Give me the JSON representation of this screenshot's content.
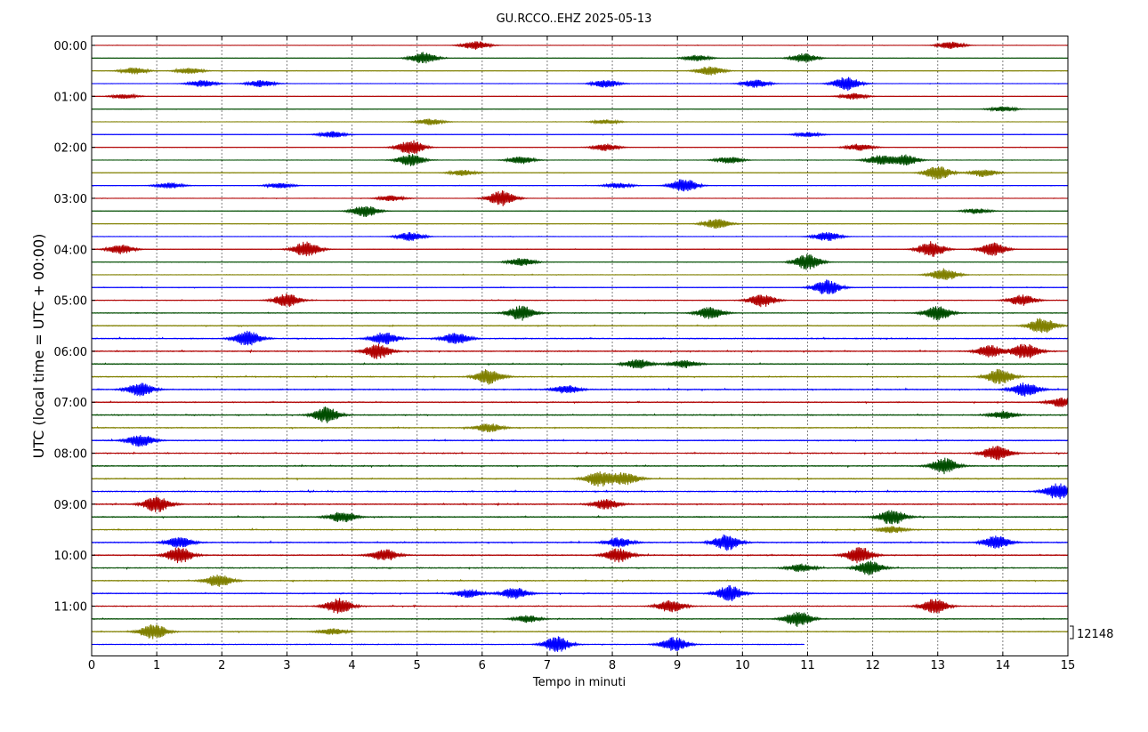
{
  "chart_data": {
    "type": "line",
    "title": "GU.RCCO..EHZ 2025-05-13",
    "xlabel": "Tempo in minuti",
    "ylabel": "UTC (local time = UTC + 00:00)",
    "xlim": [
      0,
      15
    ],
    "x_ticks": [
      "0",
      "1",
      "2",
      "3",
      "4",
      "5",
      "6",
      "7",
      "8",
      "9",
      "10",
      "11",
      "12",
      "13",
      "14",
      "15"
    ],
    "y_ticks": [
      "00:00",
      "01:00",
      "02:00",
      "03:00",
      "04:00",
      "05:00",
      "06:00",
      "07:00",
      "08:00",
      "09:00",
      "10:00",
      "11:00"
    ],
    "trace_interval_minutes": 15,
    "trace_count": 48,
    "last_trace_end_minute": 10.95,
    "scale_label": "12148",
    "colors": [
      "#b00000",
      "#004d00",
      "#808000",
      "#0000ff"
    ],
    "grid": "vertical-dotted",
    "noise_level": [
      0.12,
      0.12,
      0.12,
      0.14,
      0.12,
      0.1,
      0.12,
      0.14,
      0.14,
      0.14,
      0.14,
      0.14,
      0.14,
      0.14,
      0.14,
      0.16,
      0.16,
      0.16,
      0.18,
      0.2,
      0.22,
      0.26,
      0.3,
      0.35,
      0.35,
      0.35,
      0.35,
      0.38,
      0.35,
      0.35,
      0.35,
      0.35,
      0.35,
      0.35,
      0.35,
      0.38,
      0.38,
      0.38,
      0.35,
      0.38,
      0.38,
      0.35,
      0.32,
      0.3,
      0.3,
      0.3,
      0.3,
      0.28
    ],
    "events": [
      [
        [
          5.9,
          0.55
        ],
        [
          13.2,
          0.45
        ]
      ],
      [
        [
          5.1,
          0.75
        ],
        [
          9.3,
          0.4
        ],
        [
          10.95,
          0.6
        ]
      ],
      [
        [
          0.65,
          0.45
        ],
        [
          1.5,
          0.4
        ],
        [
          9.5,
          0.6
        ]
      ],
      [
        [
          1.7,
          0.45
        ],
        [
          2.6,
          0.45
        ],
        [
          7.9,
          0.5
        ],
        [
          10.2,
          0.55
        ],
        [
          11.6,
          0.9
        ]
      ],
      [
        [
          0.5,
          0.3
        ],
        [
          11.7,
          0.4
        ]
      ],
      [
        [
          14.0,
          0.35
        ]
      ],
      [
        [
          5.2,
          0.4
        ],
        [
          7.9,
          0.3
        ]
      ],
      [
        [
          3.7,
          0.4
        ],
        [
          11.0,
          0.3
        ]
      ],
      [
        [
          4.9,
          0.95
        ],
        [
          7.9,
          0.45
        ],
        [
          11.8,
          0.45
        ]
      ],
      [
        [
          4.9,
          0.75
        ],
        [
          6.6,
          0.5
        ],
        [
          9.8,
          0.45
        ],
        [
          12.1,
          0.6
        ],
        [
          12.5,
          0.7
        ]
      ],
      [
        [
          5.7,
          0.4
        ],
        [
          13.0,
          0.9
        ],
        [
          13.7,
          0.5
        ]
      ],
      [
        [
          1.2,
          0.4
        ],
        [
          2.9,
          0.35
        ],
        [
          8.1,
          0.35
        ],
        [
          9.1,
          0.9
        ]
      ],
      [
        [
          4.6,
          0.35
        ],
        [
          6.3,
          1.0
        ]
      ],
      [
        [
          4.2,
          0.75
        ],
        [
          13.6,
          0.35
        ]
      ],
      [
        [
          9.6,
          0.7
        ]
      ],
      [
        [
          4.9,
          0.55
        ],
        [
          11.3,
          0.6
        ]
      ],
      [
        [
          0.45,
          0.6
        ],
        [
          3.3,
          1.0
        ],
        [
          12.9,
          1.0
        ],
        [
          13.85,
          0.85
        ]
      ],
      [
        [
          6.6,
          0.5
        ],
        [
          11.0,
          1.0
        ]
      ],
      [
        [
          13.1,
          0.8
        ]
      ],
      [
        [
          11.3,
          1.0
        ]
      ],
      [
        [
          3.0,
          0.85
        ],
        [
          10.3,
          0.85
        ],
        [
          14.3,
          0.7
        ]
      ],
      [
        [
          6.6,
          0.95
        ],
        [
          9.5,
          0.75
        ],
        [
          13.0,
          0.9
        ]
      ],
      [
        [
          14.6,
          1.0
        ]
      ],
      [
        [
          2.4,
          1.0
        ],
        [
          4.5,
          0.8
        ],
        [
          5.6,
          0.75
        ]
      ],
      [
        [
          4.4,
          1.0
        ],
        [
          13.8,
          0.75
        ],
        [
          14.35,
          1.0
        ]
      ],
      [
        [
          8.4,
          0.6
        ],
        [
          9.1,
          0.5
        ]
      ],
      [
        [
          6.1,
          1.0
        ],
        [
          13.95,
          1.0
        ]
      ],
      [
        [
          0.75,
          0.85
        ],
        [
          7.3,
          0.55
        ],
        [
          14.35,
          0.9
        ]
      ],
      [
        [
          14.9,
          0.6
        ]
      ],
      [
        [
          3.6,
          1.0
        ],
        [
          14.0,
          0.5
        ]
      ],
      [
        [
          6.1,
          0.55
        ]
      ],
      [
        [
          0.75,
          0.8
        ]
      ],
      [
        [
          13.9,
          1.0
        ]
      ],
      [
        [
          13.1,
          1.0
        ]
      ],
      [
        [
          7.8,
          1.0
        ],
        [
          8.2,
          0.8
        ]
      ],
      [
        [
          14.85,
          1.0
        ]
      ],
      [
        [
          1.0,
          1.0
        ],
        [
          7.9,
          0.65
        ]
      ],
      [
        [
          3.85,
          0.7
        ],
        [
          12.3,
          1.0
        ]
      ],
      [
        [
          12.3,
          0.45
        ]
      ],
      [
        [
          1.35,
          0.7
        ],
        [
          8.1,
          0.6
        ],
        [
          9.75,
          1.0
        ],
        [
          13.9,
          0.85
        ]
      ],
      [
        [
          1.35,
          1.0
        ],
        [
          4.5,
          0.75
        ],
        [
          8.1,
          0.9
        ],
        [
          11.8,
          1.0
        ]
      ],
      [
        [
          10.9,
          0.5
        ],
        [
          11.95,
          0.9
        ]
      ],
      [
        [
          1.95,
          0.8
        ]
      ],
      [
        [
          5.8,
          0.55
        ],
        [
          6.5,
          0.75
        ],
        [
          9.8,
          1.0
        ]
      ],
      [
        [
          3.8,
          1.0
        ],
        [
          8.9,
          0.8
        ],
        [
          12.95,
          0.9
        ]
      ],
      [
        [
          10.85,
          1.0
        ],
        [
          6.7,
          0.45
        ]
      ],
      [
        [
          0.95,
          1.0
        ],
        [
          3.7,
          0.4
        ]
      ],
      [
        [
          7.15,
          1.0
        ],
        [
          8.95,
          0.9
        ]
      ]
    ]
  }
}
